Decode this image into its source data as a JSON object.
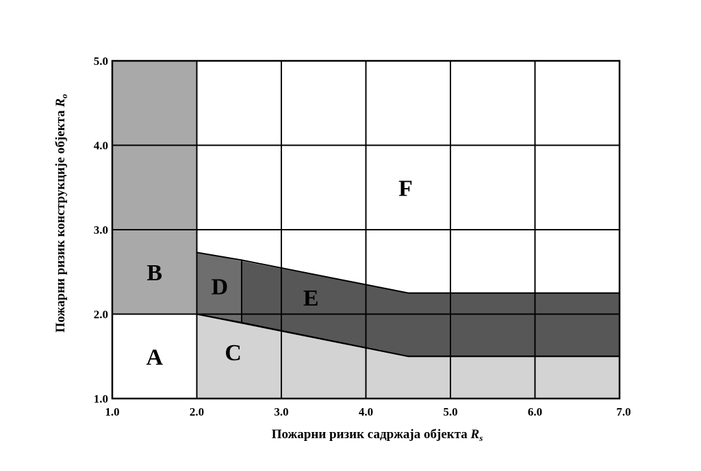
{
  "chart_data": {
    "type": "area",
    "title": "",
    "xlabel": {
      "text": "Пожарни ризик садржаја објекта ",
      "symbol": "R",
      "subscript": "s"
    },
    "ylabel": {
      "text": "Пожарни ризик конструкције објекта ",
      "symbol": "R",
      "subscript": "o"
    },
    "xlim": [
      1.0,
      7.0
    ],
    "ylim": [
      1.0,
      5.0
    ],
    "x_ticks": [
      "1.0",
      "2.0",
      "3.0",
      "4.0",
      "5.0",
      "6.0",
      "7.0"
    ],
    "y_ticks": [
      "1.0",
      "2.0",
      "3.0",
      "4.0",
      "5.0"
    ],
    "grid": true,
    "colors": {
      "A": "#ffffff",
      "B": "#a9a9a9",
      "C": "#d3d3d3",
      "D": "#6e6e6e",
      "E": "#575757",
      "F": "#ffffff"
    },
    "regions": [
      {
        "label": "A",
        "label_at": [
          1.5,
          1.5
        ],
        "polygon": [
          [
            1.0,
            1.0
          ],
          [
            2.0,
            1.0
          ],
          [
            2.0,
            2.0
          ],
          [
            1.0,
            2.0
          ]
        ]
      },
      {
        "label": "B",
        "label_at": [
          1.5,
          2.5
        ],
        "polygon": [
          [
            1.0,
            2.0
          ],
          [
            2.0,
            2.0
          ],
          [
            2.0,
            5.0
          ],
          [
            1.0,
            5.0
          ]
        ]
      },
      {
        "label": "C",
        "label_at": [
          2.43,
          1.55
        ],
        "polygon": [
          [
            2.0,
            1.0
          ],
          [
            7.0,
            1.0
          ],
          [
            7.0,
            1.5
          ],
          [
            4.5,
            1.5
          ],
          [
            2.0,
            2.0
          ]
        ]
      },
      {
        "label": "D",
        "label_at": [
          2.27,
          2.33
        ],
        "polygon": [
          [
            2.0,
            2.0
          ],
          [
            2.53,
            1.9
          ],
          [
            2.53,
            2.64
          ],
          [
            2.0,
            2.73
          ]
        ]
      },
      {
        "label": "E",
        "label_at": [
          3.35,
          2.2
        ],
        "polygon": [
          [
            2.53,
            1.9
          ],
          [
            4.5,
            1.5
          ],
          [
            7.0,
            1.5
          ],
          [
            7.0,
            2.25
          ],
          [
            4.5,
            2.25
          ],
          [
            2.53,
            2.64
          ]
        ]
      },
      {
        "label": "F",
        "label_at": [
          4.47,
          3.5
        ],
        "polygon": [
          [
            2.0,
            2.73
          ],
          [
            2.0,
            5.0
          ],
          [
            7.0,
            5.0
          ],
          [
            7.0,
            2.25
          ],
          [
            4.5,
            2.25
          ]
        ]
      }
    ]
  }
}
